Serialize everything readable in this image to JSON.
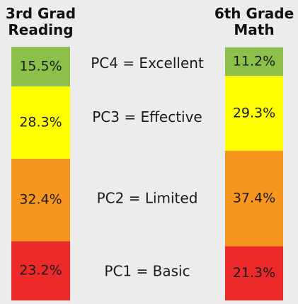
{
  "chart_data": {
    "type": "stacked-bar",
    "categories": [
      "3rd Grad Reading",
      "6th Grade Math"
    ],
    "series": [
      {
        "name": "PC1 = Basic",
        "color": "#ed2a2a",
        "values": [
          23.2,
          21.3
        ],
        "value_labels": [
          "23.2%",
          "21.3%"
        ]
      },
      {
        "name": "PC2 = Limited",
        "color": "#f7961e",
        "values": [
          32.4,
          37.4
        ],
        "value_labels": [
          "32.4%",
          "37.4%"
        ]
      },
      {
        "name": "PC3 = Effective",
        "color": "#ffff00",
        "values": [
          28.3,
          29.3
        ],
        "value_labels": [
          "28.3%",
          "29.3%"
        ]
      },
      {
        "name": "PC4 = Excellent",
        "color": "#8cc04b",
        "values": [
          15.5,
          11.2
        ],
        "value_labels": [
          "15.5%",
          "11.2%"
        ]
      }
    ]
  }
}
